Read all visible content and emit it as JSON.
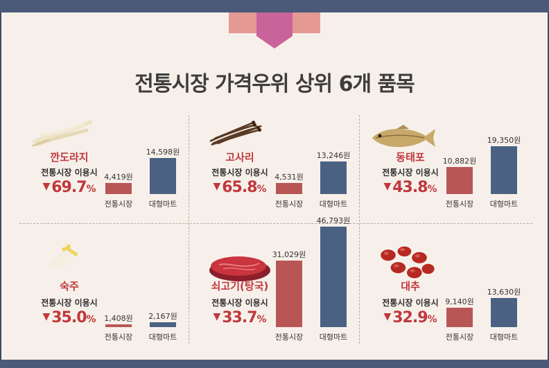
{
  "title": "전통시장 가격우위 상위 6개 품목",
  "chart_data": {
    "type": "bar",
    "title": "전통시장 가격우위 상위 6개 품목",
    "series_names": [
      "전통시장",
      "대형마트"
    ],
    "colors": {
      "trad": "#b85656",
      "mart": "#4b6184",
      "accent": "#c0383d"
    },
    "subtitle_label": "전통시장 이용시",
    "items": [
      {
        "name": "깐도라지",
        "pct": "69.7",
        "trad": 4419,
        "trad_label": "4,419원",
        "mart": 14598,
        "mart_label": "14,598원",
        "icon": "doraji-icon"
      },
      {
        "name": "고사리",
        "pct": "65.8",
        "trad": 4531,
        "trad_label": "4,531원",
        "mart": 13246,
        "mart_label": "13,246원",
        "icon": "gosari-icon"
      },
      {
        "name": "동태포",
        "pct": "43.8",
        "trad": 10882,
        "trad_label": "10,882원",
        "mart": 19350,
        "mart_label": "19,350원",
        "icon": "fish-icon"
      },
      {
        "name": "숙주",
        "pct": "35.0",
        "trad": 1408,
        "trad_label": "1,408원",
        "mart": 2167,
        "mart_label": "2,167원",
        "icon": "sprouts-icon"
      },
      {
        "name": "쇠고기(탕국)",
        "pct": "33.7",
        "trad": 31029,
        "trad_label": "31,029원",
        "mart": 46793,
        "mart_label": "46,793원",
        "icon": "beef-icon"
      },
      {
        "name": "대추",
        "pct": "32.9",
        "trad": 9140,
        "trad_label": "9,140원",
        "mart": 13630,
        "mart_label": "13,630원",
        "icon": "jujube-icon"
      }
    ],
    "unit_symbol": "%",
    "direction_symbol": "▼"
  }
}
